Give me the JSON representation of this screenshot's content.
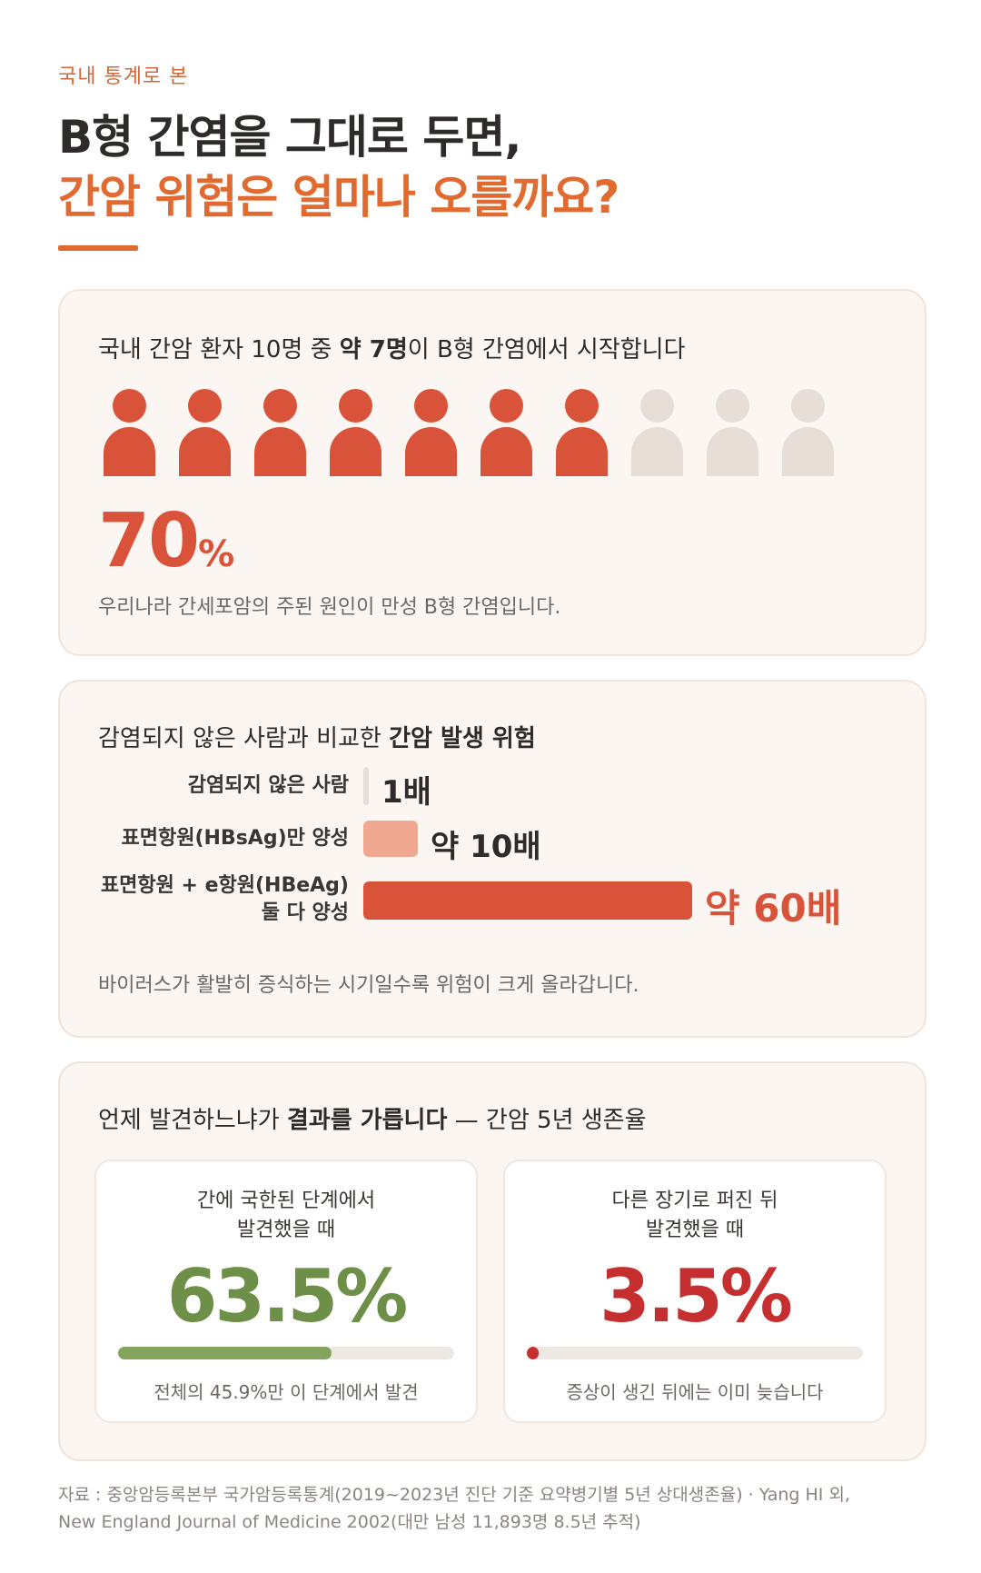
{
  "header": {
    "eyebrow": "국내 통계로 본",
    "title_line1": "B형 간염을 그대로 두면,",
    "title_line2": "간암 위험은 얼마나 오를까요?"
  },
  "card1": {
    "title_pre": "국내 간암 환자 10명 중 ",
    "title_bold": "약 7명",
    "title_post": "이 B형 간염에서 시작합니다",
    "people_total": 10,
    "people_highlighted": 7,
    "percent_value": "70",
    "percent_unit": "%",
    "note": "우리나라 간세포암의 주된 원인이 만성 B형 간염입니다."
  },
  "card2": {
    "title_pre": "감염되지 않은 사람과 비교한 ",
    "title_bold": "간암 발생 위험",
    "rows": [
      {
        "label": "감염되지 않은 사람",
        "value": "1배",
        "multiplier": 1
      },
      {
        "label": "표면항원(HBsAg)만 양성",
        "value": "약 10배",
        "multiplier": 10
      },
      {
        "label_line1": "표면항원 + e항원(HBeAg)",
        "label_line2": "둘 다 양성",
        "value": "약 60배",
        "multiplier": 60
      }
    ],
    "note": "바이러스가 활발히 증식하는 시기일수록 위험이 크게 올라갑니다."
  },
  "card3": {
    "title_pre": "언제 발견하느냐가 ",
    "title_bold": "결과를 가릅니다",
    "title_post": " — 간암 5년 생존율",
    "left": {
      "line1": "간에 국한된 단계에서",
      "line2": "발견했을 때",
      "value": "63.5%",
      "bar_fraction": 0.635,
      "note": "전체의 45.9%만 이 단계에서 발견"
    },
    "right": {
      "line1": "다른 장기로 퍼진 뒤",
      "line2": "발견했을 때",
      "value": "3.5%",
      "bar_fraction": 0.035,
      "note": "증상이 생긴 뒤에는 이미 늦습니다"
    }
  },
  "source": "자료 : 중앙암등록본부 국가암등록통계(2019~2023년 진단 기준 요약병기별 5년 상대생존율) · Yang HI 외, New England Journal of Medicine 2002(대만 남성 11,893명 8.5년 추적)",
  "colors": {
    "accent_orange": "#e06a2f",
    "risk_red": "#d9523a",
    "risk_light": "#f0a890",
    "risk_none": "#e6ddd6",
    "survival_green": "#6e8f47",
    "survival_red": "#c62f2f"
  }
}
